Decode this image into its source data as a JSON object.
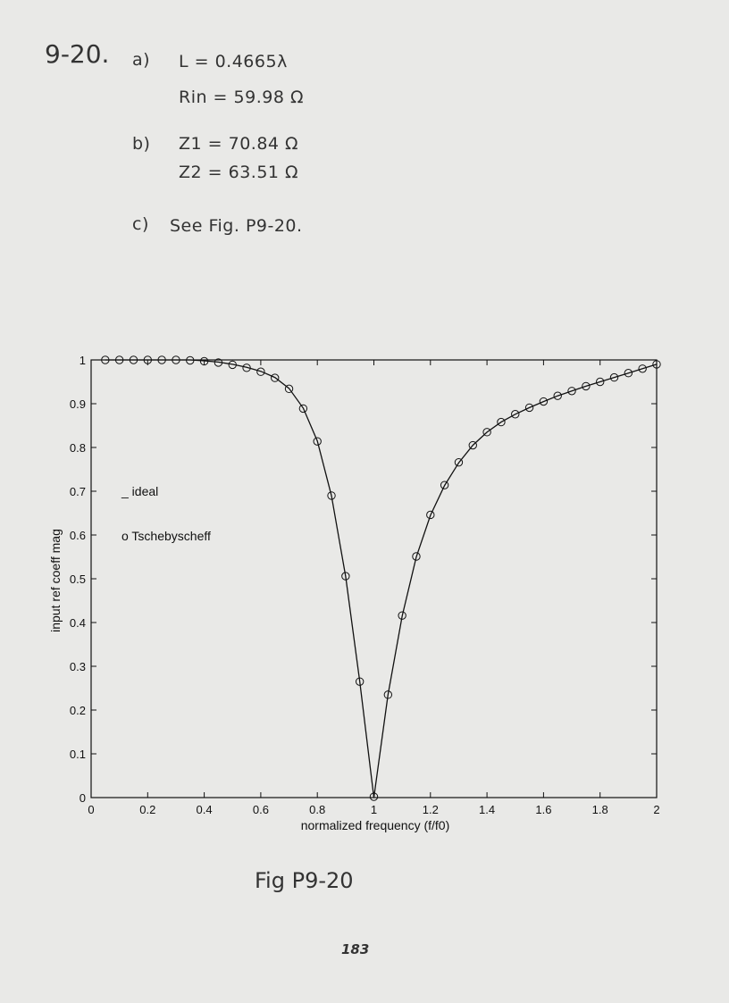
{
  "problem": {
    "number": "9-20.",
    "part_a": {
      "label": "a)",
      "line1": "L = 0.4665λ",
      "line2": "Rin = 59.98 Ω"
    },
    "part_b": {
      "label": "b)",
      "line1": "Z1 = 70.84 Ω",
      "line2": "Z2 = 63.51 Ω"
    },
    "part_c": {
      "label": "c)",
      "text": "See Fig. P9-20."
    }
  },
  "figure_caption": "Fig P9-20",
  "page_number": "183",
  "chart_data": {
    "type": "line",
    "xlabel": "normalized frequency (f/f0)",
    "ylabel": "input ref coeff mag",
    "xlim": [
      0,
      2
    ],
    "ylim": [
      0,
      1
    ],
    "x_ticks": [
      "0",
      "0.2",
      "0.4",
      "0.6",
      "0.8",
      "1",
      "1.2",
      "1.4",
      "1.6",
      "1.8",
      "2"
    ],
    "y_ticks": [
      "0",
      "0.1",
      "0.2",
      "0.3",
      "0.4",
      "0.5",
      "0.6",
      "0.7",
      "0.8",
      "0.9",
      "1"
    ],
    "grid": false,
    "legend_placement": "left-middle",
    "series": [
      {
        "name": "_ ideal",
        "marker": "line",
        "x": [
          0.05,
          0.1,
          0.15,
          0.2,
          0.25,
          0.3,
          0.35,
          0.4,
          0.45,
          0.5,
          0.55,
          0.6,
          0.65,
          0.7,
          0.75,
          0.8,
          0.85,
          0.9,
          0.95,
          1.0,
          1.05,
          1.1,
          1.15,
          1.2,
          1.25,
          1.3,
          1.35,
          1.4,
          1.45,
          1.5,
          1.55,
          1.6,
          1.65,
          1.7,
          1.75,
          1.8,
          1.85,
          1.9,
          1.95,
          2.0
        ],
        "y": [
          1.0,
          1.0,
          1.0,
          1.0,
          1.0,
          1.0,
          1.0,
          0.998,
          0.995,
          0.99,
          0.983,
          0.974,
          0.96,
          0.935,
          0.89,
          0.815,
          0.69,
          0.505,
          0.265,
          0.0,
          0.235,
          0.415,
          0.55,
          0.645,
          0.713,
          0.765,
          0.805,
          0.835,
          0.858,
          0.876,
          0.891,
          0.905,
          0.918,
          0.929,
          0.94,
          0.95,
          0.96,
          0.97,
          0.98,
          0.99
        ]
      },
      {
        "name": "o Tschebyscheff",
        "marker": "circle",
        "x": [
          0.05,
          0.1,
          0.15,
          0.2,
          0.25,
          0.3,
          0.35,
          0.4,
          0.45,
          0.5,
          0.55,
          0.6,
          0.65,
          0.7,
          0.75,
          0.8,
          0.85,
          0.9,
          0.95,
          1.0,
          1.05,
          1.1,
          1.15,
          1.2,
          1.25,
          1.3,
          1.35,
          1.4,
          1.45,
          1.5,
          1.55,
          1.6,
          1.65,
          1.7,
          1.75,
          1.8,
          1.85,
          1.9,
          1.95,
          2.0
        ],
        "y": [
          1.0,
          1.0,
          1.0,
          1.0,
          1.0,
          1.0,
          0.999,
          0.997,
          0.994,
          0.989,
          0.982,
          0.973,
          0.959,
          0.934,
          0.889,
          0.814,
          0.69,
          0.506,
          0.265,
          0.002,
          0.235,
          0.416,
          0.551,
          0.646,
          0.714,
          0.766,
          0.805,
          0.835,
          0.858,
          0.876,
          0.891,
          0.905,
          0.918,
          0.929,
          0.94,
          0.95,
          0.96,
          0.97,
          0.98,
          0.99
        ]
      }
    ]
  }
}
